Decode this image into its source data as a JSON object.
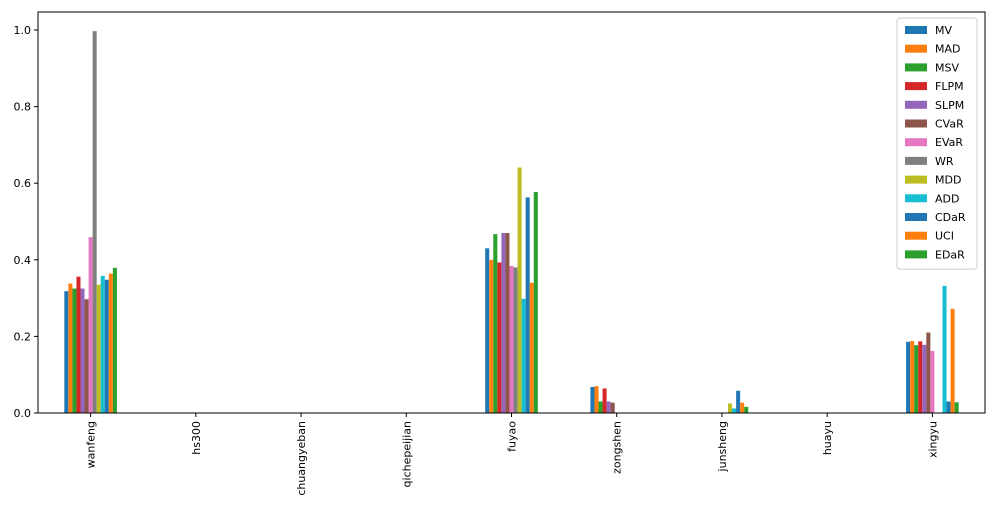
{
  "chart_data": {
    "type": "bar",
    "legend": "upper right",
    "grid": false,
    "categories": [
      "wanfeng",
      "hs300",
      "chuangyeban",
      "qichepeijian",
      "fuyao",
      "zongshen",
      "junsheng",
      "huayu",
      "xingyu"
    ],
    "ylim": [
      0,
      1.047
    ],
    "yticks": [
      {
        "value": 0,
        "label": "0.0"
      },
      {
        "value": 0.2,
        "label": "0.2"
      },
      {
        "value": 0.4,
        "label": "0.4"
      },
      {
        "value": 0.6,
        "label": "0.6"
      },
      {
        "value": 0.8,
        "label": "0.8"
      },
      {
        "value": 1,
        "label": "1.0"
      }
    ],
    "series": [
      {
        "name": "MV",
        "color": "#1f77b4",
        "values": [
          0.318,
          0,
          0,
          0,
          0.43,
          0.068,
          0,
          0,
          0.186
        ]
      },
      {
        "name": "MAD",
        "color": "#ff7f0e",
        "values": [
          0.338,
          0,
          0,
          0,
          0.4,
          0.07,
          0,
          0,
          0.188
        ]
      },
      {
        "name": "MSV",
        "color": "#2ca02c",
        "values": [
          0.325,
          0,
          0,
          0,
          0.467,
          0.03,
          0,
          0,
          0.177
        ]
      },
      {
        "name": "FLPM",
        "color": "#d62728",
        "values": [
          0.356,
          0,
          0,
          0,
          0.393,
          0.064,
          0,
          0,
          0.187
        ]
      },
      {
        "name": "SLPM",
        "color": "#9467bd",
        "values": [
          0.325,
          0,
          0,
          0,
          0.47,
          0.03,
          0,
          0,
          0.178
        ]
      },
      {
        "name": "CVaR",
        "color": "#8c564b",
        "values": [
          0.297,
          0,
          0,
          0,
          0.47,
          0.027,
          0,
          0,
          0.21
        ]
      },
      {
        "name": "EVaR",
        "color": "#e377c2",
        "values": [
          0.459,
          0,
          0,
          0,
          0.384,
          0,
          0,
          0,
          0.162
        ]
      },
      {
        "name": "WR",
        "color": "#7f7f7f",
        "values": [
          0.997,
          0,
          0,
          0,
          0.38,
          0,
          0,
          0,
          0
        ]
      },
      {
        "name": "MDD",
        "color": "#bcbd22",
        "values": [
          0.335,
          0,
          0,
          0,
          0.641,
          0,
          0.025,
          0,
          0
        ]
      },
      {
        "name": "ADD",
        "color": "#17becf",
        "values": [
          0.358,
          0,
          0,
          0,
          0.298,
          0,
          0.012,
          0,
          0.332
        ]
      },
      {
        "name": "CDaR",
        "color": "#1f77b4",
        "values": [
          0.348,
          0,
          0,
          0,
          0.563,
          0,
          0.058,
          0,
          0.03
        ]
      },
      {
        "name": "UCI",
        "color": "#ff7f0e",
        "values": [
          0.364,
          0,
          0,
          0,
          0.34,
          0,
          0.027,
          0,
          0.272
        ]
      },
      {
        "name": "EDaR",
        "color": "#2ca02c",
        "values": [
          0.379,
          0,
          0,
          0,
          0.577,
          0,
          0.016,
          0,
          0.028
        ]
      }
    ]
  }
}
